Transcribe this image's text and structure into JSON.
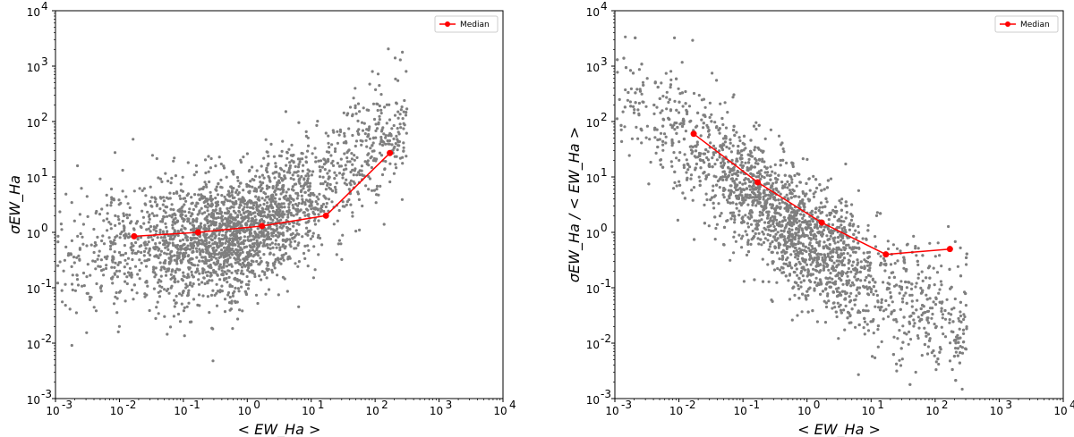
{
  "chart_data": [
    {
      "type": "scatter",
      "title": "",
      "xlabel": "< EW_Ha >",
      "ylabel": "σEW_Ha",
      "xscale": "log",
      "yscale": "log",
      "xlim": [
        0.001,
        10000
      ],
      "ylim": [
        0.001,
        10000
      ],
      "x_ticks": [
        0.001,
        0.01,
        0.1,
        1,
        10,
        100,
        1000,
        10000
      ],
      "y_ticks": [
        0.001,
        0.01,
        0.1,
        1,
        10,
        100,
        1000,
        10000
      ],
      "tick_labels": [
        "10",
        "10",
        "10",
        "10",
        "10",
        "10",
        "10",
        "10"
      ],
      "tick_exponents": [
        "-3",
        "-2",
        "-1",
        "0",
        "1",
        "2",
        "3",
        "4"
      ],
      "scatter_color": "#7f7f7f",
      "legend": {
        "label": "Median",
        "location": "upper right"
      },
      "series": [
        {
          "name": "Median",
          "color": "#ff0000",
          "x": [
            0.017,
            0.17,
            1.7,
            17,
            170
          ],
          "y": [
            0.85,
            1.0,
            1.3,
            2.0,
            27
          ]
        }
      ],
      "scatter_cloud": {
        "note": "dense cloud of ~5000 points, approximated",
        "x_log_range": [
          -3,
          2.5
        ],
        "y_log_center_at_x": [
          [
            -3,
            -0.5
          ],
          [
            -2,
            -0.3
          ],
          [
            -1,
            -0.2
          ],
          [
            0,
            0.0
          ],
          [
            1,
            0.6
          ],
          [
            2,
            1.6
          ],
          [
            2.5,
            2.0
          ]
        ],
        "y_log_spread": 0.55
      }
    },
    {
      "type": "scatter",
      "title": "",
      "xlabel": "< EW_Ha >",
      "ylabel": "σEW_Ha / < EW_Ha >",
      "xscale": "log",
      "yscale": "log",
      "xlim": [
        0.001,
        10000
      ],
      "ylim": [
        0.001,
        10000
      ],
      "x_ticks": [
        0.001,
        0.01,
        0.1,
        1,
        10,
        100,
        1000,
        10000
      ],
      "y_ticks": [
        0.001,
        0.01,
        0.1,
        1,
        10,
        100,
        1000,
        10000
      ],
      "tick_labels": [
        "10",
        "10",
        "10",
        "10",
        "10",
        "10",
        "10",
        "10"
      ],
      "tick_exponents": [
        "-3",
        "-2",
        "-1",
        "0",
        "1",
        "2",
        "3",
        "4"
      ],
      "scatter_color": "#7f7f7f",
      "legend": {
        "label": "Median",
        "location": "upper right"
      },
      "series": [
        {
          "name": "Median",
          "color": "#ff0000",
          "x": [
            0.017,
            0.17,
            1.7,
            17,
            170
          ],
          "y": [
            60,
            8.0,
            1.5,
            0.4,
            0.5
          ]
        }
      ],
      "scatter_cloud": {
        "note": "dense cloud of ~5000 points, approximated",
        "x_log_range": [
          -3,
          2.5
        ],
        "y_log_center_at_x": [
          [
            -3,
            2.5
          ],
          [
            -2,
            1.7
          ],
          [
            -1,
            0.8
          ],
          [
            0,
            -0.1
          ],
          [
            1,
            -0.9
          ],
          [
            2,
            -1.4
          ],
          [
            2.5,
            -1.5
          ]
        ],
        "y_log_spread": 0.55
      }
    }
  ]
}
